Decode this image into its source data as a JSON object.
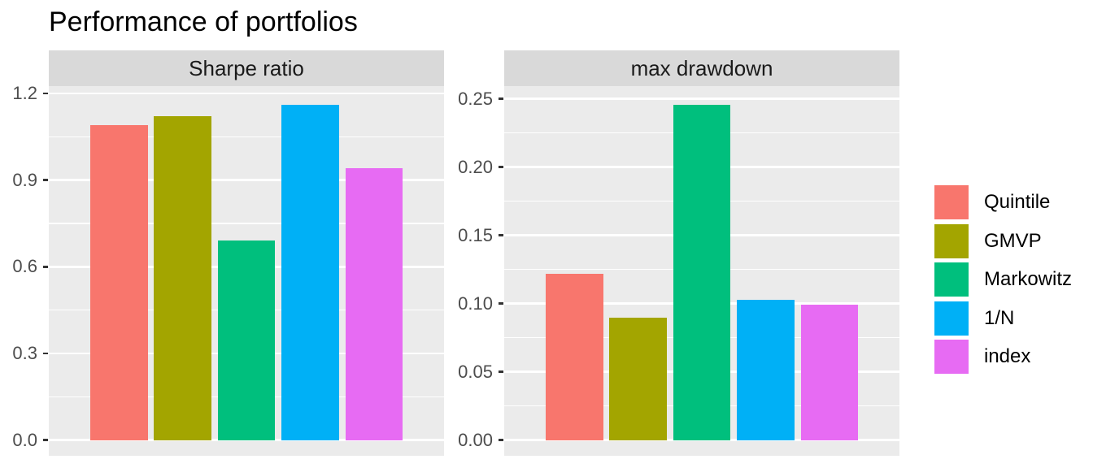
{
  "title": "Performance of portfolios",
  "categories": [
    "Quintile",
    "GMVP",
    "Markowitz",
    "1/N",
    "index"
  ],
  "legend": {
    "items": [
      {
        "label": "Quintile",
        "color": "#F8766D"
      },
      {
        "label": "GMVP",
        "color": "#A3A500"
      },
      {
        "label": "Markowitz",
        "color": "#00BF7D"
      },
      {
        "label": "1/N",
        "color": "#00B0F6"
      },
      {
        "label": "index",
        "color": "#E76BF3"
      }
    ]
  },
  "theme": {
    "panel_background": "#EBEBEB",
    "strip_background": "#D9D9D9",
    "gridline_color": "#FFFFFF",
    "axis_text_color": "#4D4D4D",
    "tick_mark_color": "#333333",
    "title_color": "#000000"
  },
  "chart_data": [
    {
      "type": "bar",
      "facet": "Sharpe ratio",
      "categories": [
        "Quintile",
        "GMVP",
        "Markowitz",
        "1/N",
        "index"
      ],
      "values": [
        1.09,
        1.12,
        0.69,
        1.16,
        0.94
      ],
      "colors": [
        "#F8766D",
        "#A3A500",
        "#00BF7D",
        "#00B0F6",
        "#E76BF3"
      ],
      "yticks": [
        0.0,
        0.3,
        0.6,
        0.9,
        1.2
      ],
      "ytick_labels": [
        "0.0",
        "0.3",
        "0.6",
        "0.9",
        "1.2"
      ],
      "ylim": [
        -0.054,
        1.225
      ],
      "grid": true,
      "xlabel": "",
      "ylabel": ""
    },
    {
      "type": "bar",
      "facet": "max drawdown",
      "categories": [
        "Quintile",
        "GMVP",
        "Markowitz",
        "1/N",
        "index"
      ],
      "values": [
        0.122,
        0.09,
        0.246,
        0.103,
        0.099
      ],
      "colors": [
        "#F8766D",
        "#A3A500",
        "#00BF7D",
        "#00B0F6",
        "#E76BF3"
      ],
      "yticks": [
        0.0,
        0.05,
        0.1,
        0.15,
        0.2,
        0.25
      ],
      "ytick_labels": [
        "0.00",
        "0.05",
        "0.10",
        "0.15",
        "0.20",
        "0.25"
      ],
      "ylim": [
        -0.0115,
        0.2594
      ],
      "grid": true,
      "xlabel": "",
      "ylabel": ""
    }
  ]
}
